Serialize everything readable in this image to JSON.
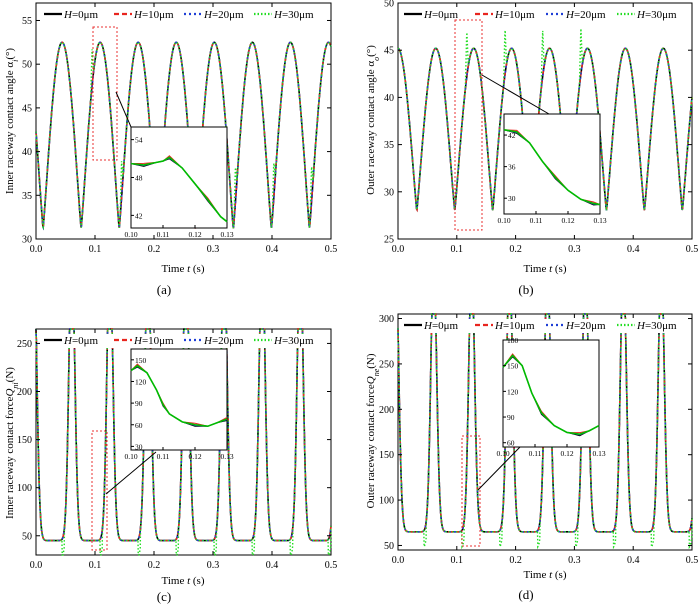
{
  "figure": {
    "legend_suffix": [
      "=0μm",
      "=10μm",
      "=20μm",
      "=30μm"
    ],
    "legend_prefix": "H",
    "colors": {
      "H0": "#000000",
      "H10": "#e8251f",
      "H20": "#1f3fd6",
      "H30": "#22dd22",
      "zoom_box": "#e83030",
      "fit_curve": "#00bb00"
    }
  },
  "chart_data": [
    {
      "type": "line",
      "panel": "(a)",
      "ylabel_main": "Inner raceway contact angle α",
      "ylabel_sub": "i",
      "ylabel_unit": "(°)",
      "xlabel_main": "Time ",
      "xlabel_var": "t",
      "xlabel_unit": " (s)",
      "xlim": [
        0,
        0.5
      ],
      "ylim": [
        30,
        57
      ],
      "xticks": [
        "0.0",
        "0.1",
        "0.2",
        "0.3",
        "0.4",
        "0.5"
      ],
      "yticks": [
        30,
        35,
        40,
        45,
        50,
        55
      ],
      "series": [
        {
          "name": "H=0μm",
          "period": 0.0645,
          "min": 31.2,
          "max": 52.5,
          "phase": 0.012
        },
        {
          "name": "H=10μm",
          "period": 0.0645,
          "min": 31.2,
          "max": 52.5,
          "phase": 0.012
        },
        {
          "name": "H=20μm",
          "period": 0.0645,
          "min": 31.2,
          "max": 52.5,
          "phase": 0.012
        },
        {
          "name": "H=30μm",
          "period": 0.0645,
          "min": 31.2,
          "max": 52.5,
          "phase": 0.012,
          "spikes": [
            0.095,
            0.145,
            0.209,
            0.273,
            0.338,
            0.403,
            0.467
          ]
        }
      ],
      "inset": {
        "xlim": [
          0.1,
          0.13
        ],
        "ylim": [
          40,
          56
        ],
        "xticks": [
          "0.10",
          "0.11",
          "0.12",
          "0.13"
        ],
        "yticks": [
          "42",
          "48",
          "54"
        ],
        "points": [
          [
            0.1,
            50.2
          ],
          [
            0.104,
            50.0
          ],
          [
            0.108,
            50.4
          ],
          [
            0.11,
            50.6
          ],
          [
            0.112,
            51.2
          ],
          [
            0.116,
            49.5
          ],
          [
            0.12,
            47.0
          ],
          [
            0.124,
            44.5
          ],
          [
            0.128,
            41.8
          ],
          [
            0.13,
            41.0
          ]
        ]
      }
    },
    {
      "type": "line",
      "panel": "(b)",
      "ylabel_main": "Outer raceway contact angle α",
      "ylabel_sub": "o",
      "ylabel_unit": "(°)",
      "xlabel_main": "Time ",
      "xlabel_var": "t",
      "xlabel_unit": " (s)",
      "xlim": [
        0,
        0.5
      ],
      "ylim": [
        25,
        50
      ],
      "xticks": [
        "0.0",
        "0.1",
        "0.2",
        "0.3",
        "0.4",
        "0.5"
      ],
      "yticks": [
        25,
        30,
        35,
        40,
        45,
        50
      ],
      "series": [
        {
          "name": "H=0μm",
          "period": 0.0645,
          "min": 28.0,
          "max": 45.2,
          "phase": 0.032
        },
        {
          "name": "H=10μm",
          "period": 0.0645,
          "min": 28.0,
          "max": 45.2,
          "phase": 0.032
        },
        {
          "name": "H=20μm",
          "period": 0.0645,
          "min": 28.0,
          "max": 45.2,
          "phase": 0.032
        },
        {
          "name": "H=30μm",
          "period": 0.0645,
          "min": 28.0,
          "max": 45.2,
          "phase": 0.032,
          "spikes": [
            0.117,
            0.182,
            0.246,
            0.311
          ]
        }
      ],
      "inset": {
        "xlim": [
          0.1,
          0.13
        ],
        "ylim": [
          27,
          46
        ],
        "xticks": [
          "0.10",
          "0.11",
          "0.12",
          "0.13"
        ],
        "yticks": [
          "30",
          "36",
          "42"
        ],
        "points": [
          [
            0.1,
            43.0
          ],
          [
            0.104,
            42.6
          ],
          [
            0.108,
            40.5
          ],
          [
            0.112,
            37.0
          ],
          [
            0.116,
            34.0
          ],
          [
            0.12,
            31.5
          ],
          [
            0.124,
            29.8
          ],
          [
            0.128,
            29.0
          ],
          [
            0.13,
            28.8
          ]
        ]
      }
    },
    {
      "type": "line",
      "panel": "(c)",
      "ylabel_main": "Inner raceway contact force",
      "ylabel_var": "Q",
      "ylabel_sub": "ni",
      "ylabel_unit": "(N)",
      "xlabel_main": "Time ",
      "xlabel_var": "t",
      "xlabel_unit": " (s)",
      "xlim": [
        0,
        0.5
      ],
      "ylim": [
        30,
        265
      ],
      "xticks": [
        "0.0",
        "0.1",
        "0.2",
        "0.3",
        "0.4",
        "0.5"
      ],
      "yticks": [
        50,
        100,
        150,
        200,
        250
      ],
      "series": [
        {
          "name": "H=0μm",
          "period": 0.0645,
          "base": 45,
          "peak_big": 260,
          "peak_small": 135,
          "offset_big": 0.068,
          "offset_small": 0.035
        },
        {
          "name": "H=10μm",
          "period": 0.0645,
          "base": 45,
          "peak_big": 260,
          "peak_small": 135,
          "offset_big": 0.068,
          "offset_small": 0.035
        },
        {
          "name": "H=20μm",
          "period": 0.0645,
          "base": 45,
          "peak_big": 260,
          "peak_small": 135,
          "offset_big": 0.068,
          "offset_small": 0.035
        },
        {
          "name": "H=30μm",
          "period": 0.0645,
          "base": 45,
          "peak_big": 260,
          "peak_small": 135,
          "offset_big": 0.068,
          "offset_small": 0.035
        }
      ],
      "inset": {
        "xlim": [
          0.1,
          0.13
        ],
        "ylim": [
          25,
          165
        ],
        "xticks": [
          "0.10",
          "0.11",
          "0.12",
          "0.13"
        ],
        "yticks": [
          "30",
          "60",
          "90",
          "120",
          "150"
        ],
        "points": [
          [
            0.1,
            135
          ],
          [
            0.102,
            142
          ],
          [
            0.105,
            132
          ],
          [
            0.108,
            108
          ],
          [
            0.11,
            88
          ],
          [
            0.112,
            75
          ],
          [
            0.116,
            64
          ],
          [
            0.12,
            60
          ],
          [
            0.124,
            58
          ],
          [
            0.127,
            63
          ],
          [
            0.13,
            68
          ]
        ]
      }
    },
    {
      "type": "line",
      "panel": "(d)",
      "ylabel_main": "Outer raceway contact force",
      "ylabel_var": "Q",
      "ylabel_sub": "ne",
      "ylabel_unit": "(N)",
      "xlabel_main": "Time ",
      "xlabel_var": "t",
      "xlabel_unit": " (s)",
      "xlim": [
        0,
        0.5
      ],
      "ylim": [
        45,
        305
      ],
      "xticks": [
        "0.0",
        "0.1",
        "0.2",
        "0.3",
        "0.4",
        "0.5"
      ],
      "yticks": [
        50,
        100,
        150,
        200,
        250,
        300
      ],
      "series": [
        {
          "name": "H=0μm",
          "period": 0.0645,
          "base": 65,
          "peak_big": 280,
          "peak_small": 150,
          "offset_big": 0.068,
          "offset_small": 0.035
        },
        {
          "name": "H=10μm",
          "period": 0.0645,
          "base": 65,
          "peak_big": 280,
          "peak_small": 150,
          "offset_big": 0.068,
          "offset_small": 0.035
        },
        {
          "name": "H=20μm",
          "period": 0.0645,
          "base": 65,
          "peak_big": 280,
          "peak_small": 150,
          "offset_big": 0.068,
          "offset_small": 0.035
        },
        {
          "name": "H=30μm",
          "period": 0.0645,
          "base": 65,
          "peak_big": 280,
          "peak_small": 150,
          "offset_big": 0.068,
          "offset_small": 0.035
        }
      ],
      "inset": {
        "xlim": [
          0.1,
          0.13
        ],
        "ylim": [
          55,
          180
        ],
        "xticks": [
          "0.10",
          "0.11",
          "0.12",
          "0.13"
        ],
        "yticks": [
          "60",
          "90",
          "120",
          "150",
          "180"
        ],
        "points": [
          [
            0.1,
            148
          ],
          [
            0.103,
            162
          ],
          [
            0.106,
            150
          ],
          [
            0.109,
            118
          ],
          [
            0.112,
            95
          ],
          [
            0.116,
            80
          ],
          [
            0.12,
            72
          ],
          [
            0.124,
            70
          ],
          [
            0.127,
            74
          ],
          [
            0.13,
            80
          ]
        ]
      }
    }
  ]
}
